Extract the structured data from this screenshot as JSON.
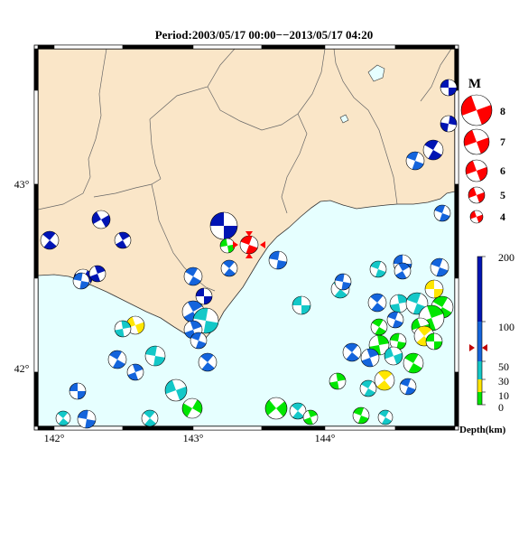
{
  "title": "Period:2003/05/17 00:00−−2013/05/17 04:20",
  "x_ticks": [
    "142°",
    "143°",
    "144°"
  ],
  "y_ticks": [
    "43°",
    "42°"
  ],
  "magnitude_legend": {
    "title": "M",
    "labels": [
      "8",
      "7",
      "6",
      "5",
      "4"
    ]
  },
  "depth_scale": {
    "label": "Depth(km)",
    "ticks": [
      "200",
      "100",
      "50",
      "30",
      "10",
      "0"
    ]
  },
  "colors": {
    "land": "#fae6c8",
    "sea": "#e6ffff",
    "shallow": "#00e600",
    "depth_10_30": "#ffe600",
    "mid": "#14c8c8",
    "mid_deep": "#1464dc",
    "deep": "#0014b4",
    "marker": "#ff0000"
  }
}
